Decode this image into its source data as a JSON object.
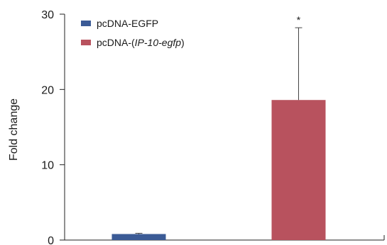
{
  "chart_data": {
    "type": "bar",
    "title": "",
    "xlabel": "",
    "ylabel": "Fold change",
    "ylim": [
      0,
      30
    ],
    "yticks": [
      0,
      10,
      20,
      30
    ],
    "grid": false,
    "legend_position": "top-left",
    "series": [
      {
        "name": "pcDNA-EGFP",
        "value": 0.8,
        "error": 0.1,
        "color": "#3b5b96"
      },
      {
        "name": "pcDNA-(IP-10-egfp)",
        "value": 18.6,
        "error": 9.6,
        "color": "#b8525e"
      }
    ],
    "legend": [
      {
        "prefix": "pcDNA-EGFP",
        "italic": "",
        "suffix": ""
      },
      {
        "prefix": "pcDNA-(",
        "italic": "IP-10-egfp",
        "suffix": ")"
      }
    ],
    "annotations": [
      {
        "text": "*",
        "series_index": 1
      }
    ]
  }
}
